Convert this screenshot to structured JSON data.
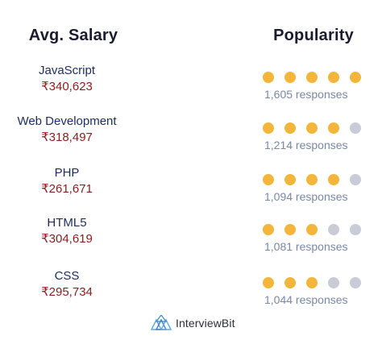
{
  "headers": {
    "salary": "Avg. Salary",
    "popularity": "Popularity"
  },
  "rows": [
    {
      "language": "JavaScript",
      "salary": "₹340,623",
      "rating": 5,
      "max_rating": 5,
      "responses": "1,605 responses"
    },
    {
      "language": "Web Development",
      "salary": "₹318,497",
      "rating": 4,
      "max_rating": 5,
      "responses": "1,214 responses"
    },
    {
      "language": "PHP",
      "salary": "₹261,671",
      "rating": 4,
      "max_rating": 5,
      "responses": "1,094 responses"
    },
    {
      "language": "HTML5",
      "salary": "₹304,619",
      "rating": 3,
      "max_rating": 5,
      "responses": "1,081 responses"
    },
    {
      "language": "CSS",
      "salary": "₹295,734",
      "rating": 3,
      "max_rating": 5,
      "responses": "1,044 responses"
    }
  ],
  "logo": {
    "text": "InterviewBit",
    "icon": "interviewbit-logo-icon"
  },
  "colors": {
    "dot_filled": "#f4b53b",
    "dot_empty": "#c9ccd6",
    "language_text": "#1f2d63",
    "salary_text": "#8b1c1c",
    "responses_text": "#7a87a6"
  }
}
